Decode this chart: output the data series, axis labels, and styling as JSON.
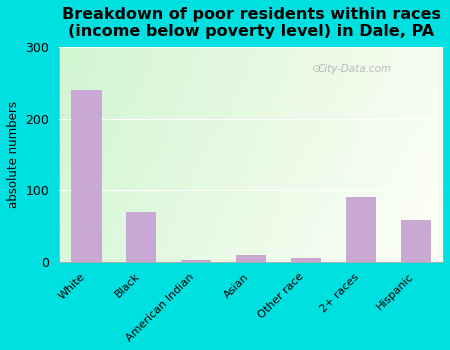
{
  "categories": [
    "White",
    "Black",
    "American Indian",
    "Asian",
    "Other race",
    "2+ races",
    "Hispanic"
  ],
  "values": [
    240,
    70,
    2,
    10,
    5,
    90,
    58
  ],
  "bar_color": "#c9a8d4",
  "title": "Breakdown of poor residents within races\n(income below poverty level) in Dale, PA",
  "ylabel": "absolute numbers",
  "ylim": [
    0,
    300
  ],
  "yticks": [
    0,
    100,
    200,
    300
  ],
  "background_outer": "#00e0e0",
  "title_fontsize": 11.5,
  "watermark": "City-Data.com"
}
